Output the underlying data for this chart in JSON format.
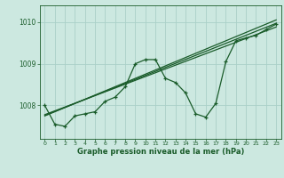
{
  "title": "Graphe pression niveau de la mer (hPa)",
  "bg_color": "#cce8e0",
  "grid_color": "#aad0c8",
  "line_color": "#1a5c2a",
  "xlim": [
    -0.5,
    23.5
  ],
  "ylim": [
    1007.2,
    1010.4
  ],
  "yticks": [
    1008,
    1009,
    1010
  ],
  "xticks": [
    0,
    1,
    2,
    3,
    4,
    5,
    6,
    7,
    8,
    9,
    10,
    11,
    12,
    13,
    14,
    15,
    16,
    17,
    18,
    19,
    20,
    21,
    22,
    23
  ],
  "main_line": [
    [
      0,
      1008.0
    ],
    [
      1,
      1007.55
    ],
    [
      2,
      1007.5
    ],
    [
      3,
      1007.75
    ],
    [
      4,
      1007.8
    ],
    [
      5,
      1007.85
    ],
    [
      6,
      1008.1
    ],
    [
      7,
      1008.2
    ],
    [
      8,
      1008.45
    ],
    [
      9,
      1009.0
    ],
    [
      10,
      1009.1
    ],
    [
      11,
      1009.1
    ],
    [
      12,
      1008.65
    ],
    [
      13,
      1008.55
    ],
    [
      14,
      1008.3
    ],
    [
      15,
      1007.8
    ],
    [
      16,
      1007.72
    ],
    [
      17,
      1008.05
    ],
    [
      18,
      1009.05
    ],
    [
      19,
      1009.55
    ],
    [
      20,
      1009.62
    ],
    [
      21,
      1009.68
    ],
    [
      22,
      1009.82
    ],
    [
      23,
      1009.95
    ]
  ],
  "trend_line1": [
    [
      0,
      1007.75
    ],
    [
      23,
      1010.05
    ]
  ],
  "trend_line2": [
    [
      0,
      1007.78
    ],
    [
      23,
      1009.88
    ]
  ],
  "trend_line3": [
    [
      0,
      1007.76
    ],
    [
      23,
      1009.97
    ]
  ]
}
